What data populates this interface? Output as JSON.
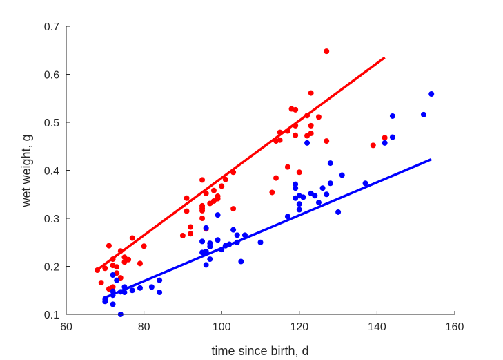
{
  "chart_data": {
    "type": "scatter",
    "title": "",
    "xlabel": "time since birth, d",
    "ylabel": "wet weight, g",
    "xlim": [
      60,
      160
    ],
    "ylim": [
      0.1,
      0.7
    ],
    "xticks": [
      60,
      80,
      100,
      120,
      140,
      160
    ],
    "yticks": [
      0.1,
      0.2,
      0.3,
      0.4,
      0.5,
      0.6,
      0.7
    ],
    "xtick_labels": [
      "60",
      "80",
      "100",
      "120",
      "140",
      "160"
    ],
    "ytick_labels": [
      "0.1",
      "0.2",
      "0.3",
      "0.4",
      "0.5",
      "0.6",
      "0.7"
    ],
    "grid": false,
    "legend": "none",
    "series": [
      {
        "color": "#ff0000",
        "points": [
          [
            68,
            0.192
          ],
          [
            69,
            0.166
          ],
          [
            70,
            0.196
          ],
          [
            71,
            0.243
          ],
          [
            71,
            0.153
          ],
          [
            72,
            0.202
          ],
          [
            72,
            0.157
          ],
          [
            72,
            0.215
          ],
          [
            73,
            0.199
          ],
          [
            73,
            0.186
          ],
          [
            74,
            0.232
          ],
          [
            74,
            0.176
          ],
          [
            75,
            0.219
          ],
          [
            75,
            0.209
          ],
          [
            76,
            0.214
          ],
          [
            77,
            0.259
          ],
          [
            79,
            0.206
          ],
          [
            80,
            0.242
          ],
          [
            90,
            0.264
          ],
          [
            91,
            0.342
          ],
          [
            91,
            0.315
          ],
          [
            92,
            0.282
          ],
          [
            92,
            0.268
          ],
          [
            95,
            0.38
          ],
          [
            95,
            0.326
          ],
          [
            95,
            0.321
          ],
          [
            95,
            0.316
          ],
          [
            95,
            0.3
          ],
          [
            96,
            0.352
          ],
          [
            96,
            0.278
          ],
          [
            97,
            0.331
          ],
          [
            98,
            0.336
          ],
          [
            98,
            0.358
          ],
          [
            99,
            0.346
          ],
          [
            99,
            0.341
          ],
          [
            100,
            0.367
          ],
          [
            101,
            0.381
          ],
          [
            103,
            0.396
          ],
          [
            103,
            0.32
          ],
          [
            113,
            0.354
          ],
          [
            114,
            0.461
          ],
          [
            114,
            0.384
          ],
          [
            115,
            0.479
          ],
          [
            115,
            0.463
          ],
          [
            117,
            0.482
          ],
          [
            117,
            0.407
          ],
          [
            118,
            0.528
          ],
          [
            119,
            0.526
          ],
          [
            119,
            0.493
          ],
          [
            119,
            0.473
          ],
          [
            120,
            0.396
          ],
          [
            122,
            0.514
          ],
          [
            122,
            0.472
          ],
          [
            123,
            0.561
          ],
          [
            123,
            0.493
          ],
          [
            123,
            0.477
          ],
          [
            125,
            0.511
          ],
          [
            127,
            0.648
          ],
          [
            127,
            0.461
          ],
          [
            139,
            0.452
          ],
          [
            142,
            0.468
          ]
        ],
        "fit": {
          "x": [
            68,
            142
          ],
          "y": [
            0.193,
            0.635
          ]
        }
      },
      {
        "color": "#0000ff",
        "points": [
          [
            70,
            0.127
          ],
          [
            70,
            0.132
          ],
          [
            72,
            0.182
          ],
          [
            72,
            0.148
          ],
          [
            72,
            0.14
          ],
          [
            72,
            0.121
          ],
          [
            73,
            0.171
          ],
          [
            74,
            0.147
          ],
          [
            74,
            0.1
          ],
          [
            75,
            0.157
          ],
          [
            75,
            0.146
          ],
          [
            77,
            0.15
          ],
          [
            79,
            0.155
          ],
          [
            82,
            0.157
          ],
          [
            84,
            0.171
          ],
          [
            84,
            0.146
          ],
          [
            95,
            0.252
          ],
          [
            95,
            0.229
          ],
          [
            96,
            0.28
          ],
          [
            96,
            0.231
          ],
          [
            96,
            0.203
          ],
          [
            97,
            0.248
          ],
          [
            97,
            0.241
          ],
          [
            97,
            0.215
          ],
          [
            99,
            0.307
          ],
          [
            99,
            0.255
          ],
          [
            100,
            0.235
          ],
          [
            101,
            0.243
          ],
          [
            102,
            0.246
          ],
          [
            103,
            0.276
          ],
          [
            104,
            0.265
          ],
          [
            104,
            0.25
          ],
          [
            105,
            0.21
          ],
          [
            106,
            0.265
          ],
          [
            110,
            0.25
          ],
          [
            117,
            0.304
          ],
          [
            119,
            0.371
          ],
          [
            119,
            0.363
          ],
          [
            119,
            0.342
          ],
          [
            120,
            0.347
          ],
          [
            120,
            0.33
          ],
          [
            120,
            0.318
          ],
          [
            121,
            0.344
          ],
          [
            122,
            0.457
          ],
          [
            123,
            0.352
          ],
          [
            124,
            0.347
          ],
          [
            125,
            0.333
          ],
          [
            126,
            0.363
          ],
          [
            127,
            0.35
          ],
          [
            128,
            0.415
          ],
          [
            128,
            0.373
          ],
          [
            130,
            0.313
          ],
          [
            131,
            0.39
          ],
          [
            137,
            0.373
          ],
          [
            142,
            0.457
          ],
          [
            144,
            0.513
          ],
          [
            144,
            0.469
          ],
          [
            152,
            0.516
          ],
          [
            154,
            0.559
          ]
        ],
        "fit": {
          "x": [
            70,
            154
          ],
          "y": [
            0.135,
            0.423
          ]
        }
      }
    ]
  }
}
